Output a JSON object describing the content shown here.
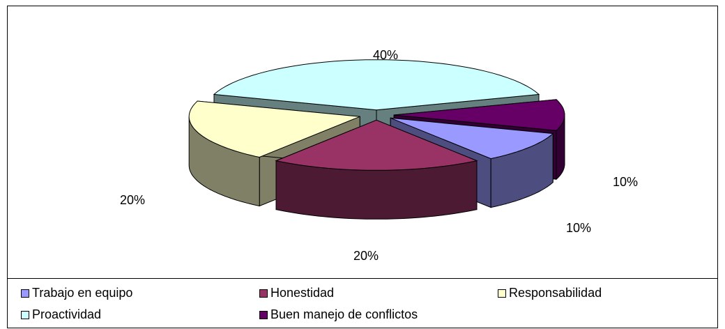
{
  "chart_data": {
    "type": "pie3d",
    "categories": [
      "Trabajo en equipo",
      "Honestidad",
      "Responsabilidad",
      "Proactividad",
      "Buen manejo de conflictos"
    ],
    "values": [
      10,
      20,
      20,
      40,
      10
    ],
    "value_labels": [
      "10%",
      "20%",
      "20%",
      "40%",
      "10%"
    ],
    "colors": [
      "#9999ff",
      "#993366",
      "#ffffcc",
      "#ccffff",
      "#660066"
    ],
    "legend": "bottom"
  }
}
